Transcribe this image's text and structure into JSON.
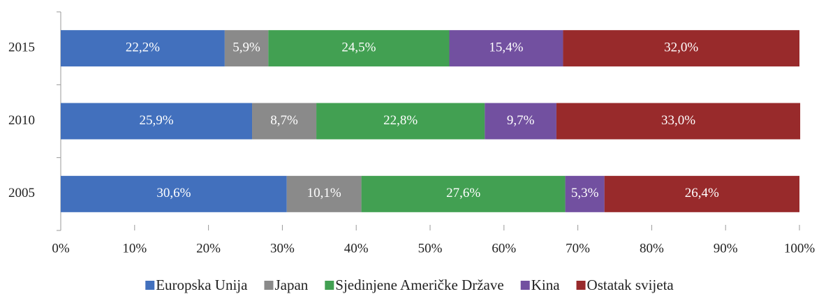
{
  "chart_data": {
    "type": "stacked-bar-horizontal",
    "categories": [
      "2015",
      "2010",
      "2005"
    ],
    "series": [
      {
        "name": "Europska Unija",
        "color": "#4270bd",
        "values": [
          22.2,
          25.9,
          30.6
        ],
        "value_labels": [
          "22,2%",
          "25,9%",
          "30,6%"
        ]
      },
      {
        "name": "Japan",
        "color": "#8a8a8a",
        "values": [
          5.9,
          8.7,
          10.1
        ],
        "value_labels": [
          "5,9%",
          "8,7%",
          "10,1%"
        ]
      },
      {
        "name": "Sjedinjene Američke Države",
        "color": "#42a052",
        "values": [
          24.5,
          22.8,
          27.6
        ],
        "value_labels": [
          "24,5%",
          "22,8%",
          "27,6%"
        ]
      },
      {
        "name": "Kina",
        "color": "#7250a0",
        "values": [
          15.4,
          9.7,
          5.3
        ],
        "value_labels": [
          "15,4%",
          "9,7%",
          "5,3%"
        ]
      },
      {
        "name": "Ostatak svijeta",
        "color": "#982a2b",
        "values": [
          32.0,
          33.0,
          26.4
        ],
        "value_labels": [
          "32,0%",
          "33,0%",
          "26,4%"
        ]
      }
    ],
    "xlim": [
      0,
      100
    ],
    "xticks": [
      {
        "value": 0,
        "label": "0%"
      },
      {
        "value": 10,
        "label": "10%"
      },
      {
        "value": 20,
        "label": "20%"
      },
      {
        "value": 30,
        "label": "30%"
      },
      {
        "value": 40,
        "label": "40%"
      },
      {
        "value": 50,
        "label": "50%"
      },
      {
        "value": 60,
        "label": "60%"
      },
      {
        "value": 70,
        "label": "70%"
      },
      {
        "value": 80,
        "label": "80%"
      },
      {
        "value": 90,
        "label": "90%"
      },
      {
        "value": 100,
        "label": "100%"
      }
    ],
    "legend": "bottom"
  }
}
